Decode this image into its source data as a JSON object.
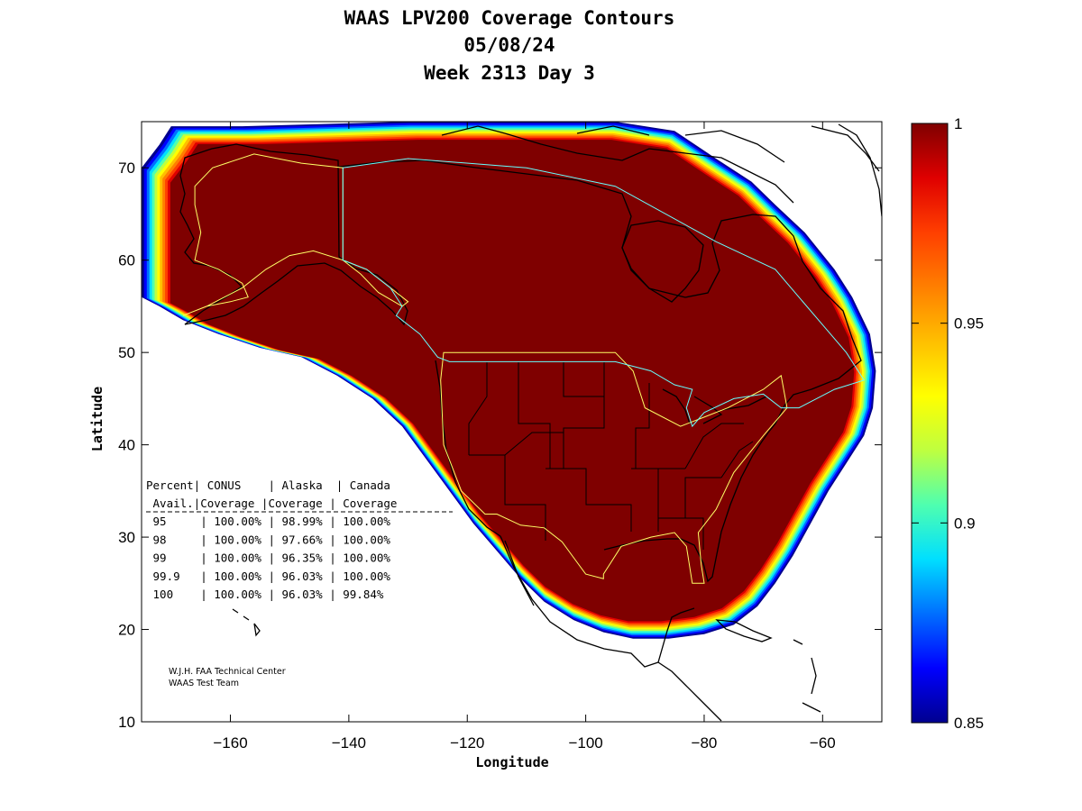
{
  "chart_data": {
    "type": "contour-map",
    "title_lines": [
      "WAAS LPV200 Coverage Contours",
      "05/08/24",
      "Week 2313 Day 3"
    ],
    "xlabel": "Longitude",
    "ylabel": "Latitude",
    "xlim": [
      -175,
      -50
    ],
    "ylim": [
      10,
      75
    ],
    "xticks": [
      -160,
      -140,
      -120,
      -100,
      -80,
      -60
    ],
    "yticks": [
      10,
      20,
      30,
      40,
      50,
      60,
      70
    ],
    "colorbar": {
      "min": 0.85,
      "max": 1,
      "tick_values": [
        1,
        0.95,
        0.9,
        0.85
      ],
      "tick_labels": [
        "1",
        "0.95",
        "0.9",
        "0.85"
      ],
      "colors": [
        "#00008f",
        "#0000ff",
        "#006fff",
        "#00dfff",
        "#4fffaf",
        "#bfff3f",
        "#ffff00",
        "#ffbf00",
        "#ff7f00",
        "#ff3f00",
        "#df0000",
        "#7f0000"
      ]
    },
    "coverage_table": {
      "header_row1": [
        "Percent",
        "CONUS",
        "Alaska",
        "Canada"
      ],
      "header_row2": [
        "Avail.",
        "Coverage",
        "Coverage",
        "Coverage"
      ],
      "rows": [
        [
          "95",
          "100.00%",
          "98.99%",
          "100.00%"
        ],
        [
          "98",
          "100.00%",
          "97.66%",
          "100.00%"
        ],
        [
          "99",
          "100.00%",
          "96.35%",
          "100.00%"
        ],
        [
          "99.9",
          "100.00%",
          "96.03%",
          "100.00%"
        ],
        [
          "100",
          "100.00%",
          "96.03%",
          "99.84%"
        ]
      ]
    },
    "credits": [
      "W.J.H. FAA Technical Center",
      "WAAS Test Team"
    ],
    "coverage_region_lonlat": [
      [
        -170,
        74.5
      ],
      [
        -158,
        74.5
      ],
      [
        -130,
        75
      ],
      [
        -106,
        75
      ],
      [
        -95,
        75
      ],
      [
        -85,
        74
      ],
      [
        -78,
        71
      ],
      [
        -72,
        68.5
      ],
      [
        -68,
        66
      ],
      [
        -63,
        63
      ],
      [
        -58,
        59
      ],
      [
        -55,
        56
      ],
      [
        -52,
        52
      ],
      [
        -51,
        48
      ],
      [
        -51.5,
        44
      ],
      [
        -53,
        41
      ],
      [
        -56,
        38
      ],
      [
        -59,
        35
      ],
      [
        -62,
        31.5
      ],
      [
        -65,
        28
      ],
      [
        -68,
        25
      ],
      [
        -71,
        22.5
      ],
      [
        -75,
        20.5
      ],
      [
        -80,
        19.5
      ],
      [
        -86,
        19
      ],
      [
        -92,
        19
      ],
      [
        -97,
        19.7
      ],
      [
        -102,
        21
      ],
      [
        -107,
        23
      ],
      [
        -111,
        25.5
      ],
      [
        -115,
        28.5
      ],
      [
        -119,
        31.5
      ],
      [
        -123,
        35
      ],
      [
        -127,
        38.5
      ],
      [
        -131,
        42
      ],
      [
        -136,
        45
      ],
      [
        -142,
        47.5
      ],
      [
        -148,
        49.5
      ],
      [
        -155,
        50.5
      ],
      [
        -162,
        52
      ],
      [
        -168,
        53.5
      ],
      [
        -172,
        55
      ],
      [
        -175,
        56
      ],
      [
        -175,
        70
      ],
      [
        -172,
        72.5
      ]
    ],
    "overlay_lines": {
      "conus_box": [
        [
          -124,
          50
        ],
        [
          -95,
          50
        ],
        [
          -92,
          48
        ],
        [
          -90,
          44
        ],
        [
          -84,
          42
        ],
        [
          -80,
          43
        ],
        [
          -76,
          44
        ],
        [
          -70,
          46
        ],
        [
          -67,
          47.5
        ],
        [
          -66,
          44
        ],
        [
          -70,
          41
        ],
        [
          -75,
          37
        ],
        [
          -78,
          33
        ],
        [
          -81,
          30.5
        ],
        [
          -80.5,
          27
        ],
        [
          -80,
          25
        ],
        [
          -82,
          25
        ],
        [
          -83,
          29
        ],
        [
          -85,
          30.5
        ],
        [
          -89,
          30
        ],
        [
          -94,
          29
        ],
        [
          -97,
          26
        ],
        [
          -97,
          25.5
        ],
        [
          -100,
          26
        ],
        [
          -104,
          29.5
        ],
        [
          -107,
          31
        ],
        [
          -111,
          31.3
        ],
        [
          -115,
          32.5
        ],
        [
          -117,
          32.5
        ],
        [
          -121,
          35
        ],
        [
          -124,
          40
        ],
        [
          -124.5,
          47
        ]
      ],
      "alaska_box": [
        [
          -168,
          54
        ],
        [
          -164,
          55
        ],
        [
          -158,
          57
        ],
        [
          -154,
          59
        ],
        [
          -150,
          60.5
        ],
        [
          -146,
          61
        ],
        [
          -141,
          60
        ],
        [
          -138,
          58.5
        ],
        [
          -135,
          56.5
        ],
        [
          -131,
          55
        ],
        [
          -130,
          55.5
        ],
        [
          -133,
          57
        ],
        [
          -137,
          59
        ],
        [
          -141,
          60
        ],
        [
          -141,
          70
        ],
        [
          -148,
          70.5
        ],
        [
          -156,
          71.5
        ],
        [
          -163,
          70
        ],
        [
          -166,
          68
        ],
        [
          -166,
          66
        ],
        [
          -165,
          63
        ],
        [
          -166,
          60
        ],
        [
          -162,
          59
        ],
        [
          -158,
          57.5
        ],
        [
          -157,
          56
        ],
        [
          -160,
          55.5
        ],
        [
          -164,
          55
        ]
      ],
      "canada_box": [
        [
          -141,
          70
        ],
        [
          -130,
          71
        ],
        [
          -110,
          70
        ],
        [
          -95,
          68
        ],
        [
          -78,
          62
        ],
        [
          -68,
          59
        ],
        [
          -64,
          56
        ],
        [
          -60,
          53
        ],
        [
          -56,
          50
        ],
        [
          -53,
          47
        ],
        [
          -58,
          46
        ],
        [
          -64,
          44
        ],
        [
          -67,
          44
        ],
        [
          -70,
          45.5
        ],
        [
          -75,
          45
        ],
        [
          -80,
          43.5
        ],
        [
          -82,
          42
        ],
        [
          -83,
          44
        ],
        [
          -82,
          46
        ],
        [
          -85,
          46.5
        ],
        [
          -89,
          48
        ],
        [
          -95,
          49
        ],
        [
          -110,
          49
        ],
        [
          -123,
          49
        ],
        [
          -125,
          49.5
        ],
        [
          -128,
          52
        ],
        [
          -132,
          54
        ],
        [
          -131,
          55
        ],
        [
          -133,
          57
        ],
        [
          -137,
          59
        ],
        [
          -141,
          60
        ]
      ]
    }
  }
}
